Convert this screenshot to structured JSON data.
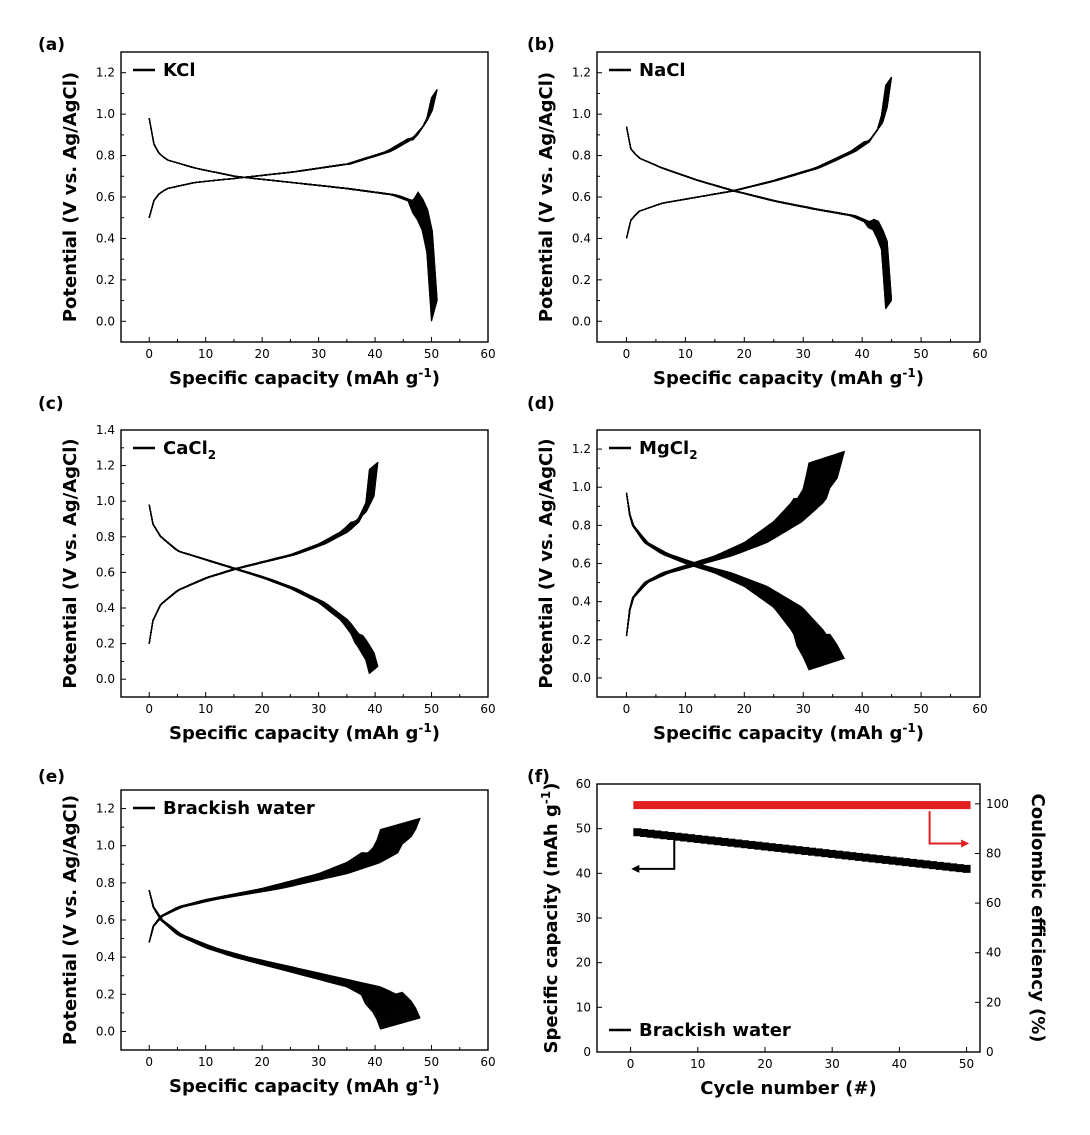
{
  "colors": {
    "curve": "#000000",
    "efficiency": "#e02020",
    "axis": "#000000"
  },
  "chart_data": [
    {
      "panel": "(a)",
      "type": "line",
      "legend": "KCl",
      "legend_sub": "",
      "xlabel": "Specific capacity (mAh g",
      "xlabel_sup": "-1",
      "xlabel_end": ")",
      "ylabel": "Potential (V vs. Ag/AgCl)",
      "xlim": [
        -5,
        60
      ],
      "ylim": [
        -0.1,
        1.3
      ],
      "xticks": [
        0,
        10,
        20,
        30,
        40,
        50,
        60
      ],
      "yticks": [
        0.0,
        0.2,
        0.4,
        0.6,
        0.8,
        1.0,
        1.2
      ],
      "cycles": 50,
      "series": [
        {
          "name": "charge",
          "x": [
            0,
            1,
            3,
            8,
            15,
            25,
            35,
            42,
            47,
            49,
            50
          ],
          "y": [
            0.5,
            0.6,
            0.64,
            0.67,
            0.69,
            0.72,
            0.76,
            0.82,
            0.9,
            0.98,
            1.1
          ],
          "x_spread": 1.0,
          "tip_spread": 0.02
        },
        {
          "name": "discharge",
          "x": [
            0,
            1,
            3,
            8,
            15,
            25,
            35,
            43,
            47,
            49,
            50
          ],
          "y": [
            0.98,
            0.83,
            0.78,
            0.74,
            0.7,
            0.67,
            0.64,
            0.61,
            0.57,
            0.45,
            0.05
          ],
          "x_spread": 1.0,
          "tip_spread": 0.05
        }
      ]
    },
    {
      "panel": "(b)",
      "type": "line",
      "legend": "NaCl",
      "legend_sub": "",
      "xlabel": "Specific capacity (mAh g",
      "xlabel_sup": "-1",
      "xlabel_end": ")",
      "ylabel": "Potential (V vs. Ag/AgCl)",
      "xlim": [
        -5,
        60
      ],
      "ylim": [
        -0.1,
        1.3
      ],
      "xticks": [
        0,
        10,
        20,
        30,
        40,
        50,
        60
      ],
      "yticks": [
        0.0,
        0.2,
        0.4,
        0.6,
        0.8,
        1.0,
        1.2
      ],
      "cycles": 50,
      "series": [
        {
          "name": "charge",
          "x": [
            0,
            0.5,
            2,
            6,
            12,
            18,
            25,
            32,
            38,
            41,
            43,
            44
          ],
          "y": [
            0.4,
            0.48,
            0.53,
            0.57,
            0.6,
            0.63,
            0.68,
            0.74,
            0.82,
            0.88,
            0.96,
            1.16
          ],
          "x_spread": 1.0,
          "tip_spread": 0.02
        },
        {
          "name": "discharge",
          "x": [
            0,
            0.5,
            2,
            6,
            12,
            18,
            25,
            32,
            38,
            42,
            43.5,
            44
          ],
          "y": [
            0.94,
            0.84,
            0.79,
            0.74,
            0.68,
            0.63,
            0.58,
            0.54,
            0.51,
            0.46,
            0.35,
            0.08
          ],
          "x_spread": 1.0,
          "tip_spread": 0.02
        }
      ]
    },
    {
      "panel": "(c)",
      "type": "line",
      "legend": "CaCl",
      "legend_sub": "2",
      "xlabel": "Specific capacity (mAh g",
      "xlabel_sup": "-1",
      "xlabel_end": ")",
      "ylabel": "Potential (V vs. Ag/AgCl)",
      "xlim": [
        -5,
        60
      ],
      "ylim": [
        -0.1,
        1.4
      ],
      "xticks": [
        0,
        10,
        20,
        30,
        40,
        50,
        60
      ],
      "yticks": [
        0.0,
        0.2,
        0.4,
        0.6,
        0.8,
        1.0,
        1.2,
        1.4
      ],
      "cycles": 50,
      "series": [
        {
          "name": "charge",
          "x": [
            0,
            0.5,
            2,
            5,
            10,
            15,
            20,
            25,
            30,
            34,
            37,
            38.5,
            39
          ],
          "y": [
            0.2,
            0.32,
            0.42,
            0.5,
            0.57,
            0.62,
            0.66,
            0.7,
            0.76,
            0.83,
            0.92,
            1.02,
            1.2
          ],
          "x_spread": 1.5,
          "tip_spread": 0.02
        },
        {
          "name": "discharge",
          "x": [
            0,
            0.5,
            2,
            5,
            10,
            15,
            20,
            25,
            30,
            34,
            37,
            38.5,
            39
          ],
          "y": [
            0.98,
            0.88,
            0.8,
            0.72,
            0.67,
            0.62,
            0.57,
            0.51,
            0.43,
            0.33,
            0.2,
            0.12,
            0.05
          ],
          "x_spread": 1.5,
          "tip_spread": 0.02
        }
      ]
    },
    {
      "panel": "(d)",
      "type": "line",
      "legend": "MgCl",
      "legend_sub": "2",
      "xlabel": "Specific capacity (mAh g",
      "xlabel_sup": "-1",
      "xlabel_end": ")",
      "ylabel": "Potential (V vs. Ag/AgCl)",
      "xlim": [
        -5,
        60
      ],
      "ylim": [
        -0.1,
        1.3
      ],
      "xticks": [
        0,
        10,
        20,
        30,
        40,
        50,
        60
      ],
      "yticks": [
        0.0,
        0.2,
        0.4,
        0.6,
        0.8,
        1.0,
        1.2
      ],
      "cycles": 50,
      "series": [
        {
          "name": "charge",
          "x": [
            0,
            0.3,
            1,
            3,
            6,
            10,
            15,
            20,
            25,
            28,
            30,
            31
          ],
          "y": [
            0.22,
            0.33,
            0.42,
            0.5,
            0.55,
            0.59,
            0.64,
            0.71,
            0.82,
            0.92,
            1.02,
            1.16
          ],
          "x_spread": 6.0,
          "tip_spread": 0.03
        },
        {
          "name": "discharge",
          "x": [
            0,
            0.3,
            1,
            3,
            6,
            10,
            15,
            20,
            25,
            28,
            30,
            31
          ],
          "y": [
            0.97,
            0.88,
            0.8,
            0.71,
            0.65,
            0.6,
            0.55,
            0.48,
            0.37,
            0.25,
            0.14,
            0.07
          ],
          "x_spread": 6.0,
          "tip_spread": 0.03
        }
      ]
    },
    {
      "panel": "(e)",
      "type": "line",
      "legend": "Brackish water",
      "legend_sub": "",
      "xlabel": "Specific capacity (mAh g",
      "xlabel_sup": "-1",
      "xlabel_end": ")",
      "ylabel": "Potential (V vs. Ag/AgCl)",
      "xlim": [
        -5,
        60
      ],
      "ylim": [
        -0.1,
        1.3
      ],
      "xticks": [
        0,
        10,
        20,
        30,
        40,
        50,
        60
      ],
      "yticks": [
        0.0,
        0.2,
        0.4,
        0.6,
        0.8,
        1.0,
        1.2
      ],
      "cycles": 50,
      "series": [
        {
          "name": "charge",
          "x": [
            0,
            0.5,
            2,
            5,
            10,
            15,
            20,
            25,
            30,
            35,
            38,
            40,
            41
          ],
          "y": [
            0.48,
            0.56,
            0.62,
            0.67,
            0.71,
            0.74,
            0.77,
            0.81,
            0.85,
            0.91,
            0.97,
            1.03,
            1.12
          ],
          "x_spread": 7.0,
          "tip_spread": 0.03
        },
        {
          "name": "discharge",
          "x": [
            0,
            0.5,
            2,
            5,
            10,
            15,
            20,
            25,
            30,
            35,
            38,
            40,
            41
          ],
          "y": [
            0.76,
            0.68,
            0.6,
            0.52,
            0.45,
            0.4,
            0.36,
            0.32,
            0.28,
            0.24,
            0.19,
            0.12,
            0.04
          ],
          "x_spread": 7.0,
          "tip_spread": 0.03
        }
      ]
    },
    {
      "panel": "(f)",
      "type": "scatter",
      "legend": "Brackish water",
      "legend_sub": "",
      "xlabel": "Cycle number (#)",
      "ylabel": "Specific capacity (mAh g",
      "ylabel_sup": "-1",
      "ylabel_end": ")",
      "y2label": "Coulombic efficiency (%)",
      "xlim": [
        -5,
        52
      ],
      "ylim": [
        0,
        60
      ],
      "y2lim": [
        0,
        108
      ],
      "xticks": [
        0,
        10,
        20,
        30,
        40,
        50
      ],
      "yticks": [
        0,
        10,
        20,
        30,
        40,
        50,
        60
      ],
      "y2ticks": [
        0,
        20,
        40,
        60,
        80,
        100
      ],
      "series": [
        {
          "name": "Specific capacity",
          "axis": "left",
          "color": "#000000",
          "x_start": 1,
          "x_end": 50,
          "y_start": 49.2,
          "y_end": 41.0
        },
        {
          "name": "Coulombic efficiency",
          "axis": "right",
          "color": "#e02020",
          "x_start": 1,
          "x_end": 50,
          "y_start": 99.5,
          "y_end": 99.5
        }
      ]
    }
  ]
}
